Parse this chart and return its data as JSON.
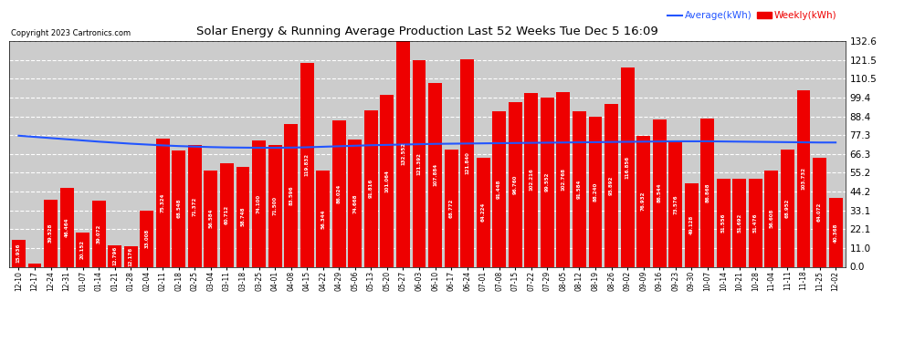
{
  "title": "Solar Energy & Running Average Production Last 52 Weeks Tue Dec 5 16:09",
  "copyright": "Copyright 2023 Cartronics.com",
  "legend_avg": "Average(kWh)",
  "legend_weekly": "Weekly(kWh)",
  "bar_color": "#ee0000",
  "avg_line_color": "#2255ff",
  "background_color": "#ffffff",
  "plot_bg_color": "#cccccc",
  "grid_color": "#ffffff",
  "ylim": [
    0.0,
    132.6
  ],
  "yticks": [
    0.0,
    11.0,
    22.1,
    33.1,
    44.2,
    55.2,
    66.3,
    77.3,
    88.4,
    99.4,
    110.5,
    121.5,
    132.6
  ],
  "categories": [
    "12-10",
    "12-17",
    "12-24",
    "12-31",
    "01-07",
    "01-14",
    "01-21",
    "01-28",
    "02-04",
    "02-11",
    "02-18",
    "02-25",
    "03-04",
    "03-11",
    "03-18",
    "03-25",
    "04-01",
    "04-08",
    "04-15",
    "04-22",
    "04-29",
    "05-06",
    "05-13",
    "05-20",
    "05-27",
    "06-03",
    "06-10",
    "06-17",
    "06-24",
    "07-01",
    "07-08",
    "07-15",
    "07-22",
    "07-29",
    "08-05",
    "08-12",
    "08-19",
    "08-26",
    "09-02",
    "09-09",
    "09-16",
    "09-23",
    "09-30",
    "10-07",
    "10-14",
    "10-21",
    "10-28",
    "11-04",
    "11-11",
    "11-18",
    "11-25",
    "12-02"
  ],
  "weekly_values": [
    15.936,
    1.928,
    39.528,
    46.464,
    20.152,
    39.072,
    12.796,
    12.176,
    33.008,
    75.324,
    68.548,
    71.372,
    56.584,
    60.712,
    58.748,
    74.1,
    71.5,
    83.596,
    119.832,
    56.344,
    86.024,
    74.668,
    91.816,
    101.064,
    132.552,
    121.392,
    107.884,
    68.772,
    121.84,
    64.224,
    91.448,
    96.76,
    102.216,
    99.552,
    102.768,
    91.584,
    88.24,
    95.892,
    116.856,
    76.932,
    86.544,
    73.576,
    49.128,
    86.868,
    51.556,
    51.692,
    51.476,
    56.608,
    68.952,
    103.732,
    64.072,
    40.368
  ],
  "avg_values": [
    77.0,
    76.3,
    75.6,
    74.9,
    74.2,
    73.5,
    72.9,
    72.3,
    71.8,
    71.3,
    70.9,
    70.6,
    70.3,
    70.1,
    70.0,
    69.9,
    69.9,
    70.0,
    70.2,
    70.5,
    70.8,
    71.1,
    71.4,
    71.6,
    71.8,
    72.0,
    72.2,
    72.3,
    72.4,
    72.5,
    72.6,
    72.7,
    72.8,
    72.9,
    73.0,
    73.1,
    73.2,
    73.3,
    73.4,
    73.5,
    73.6,
    73.7,
    73.7,
    73.7,
    73.6,
    73.5,
    73.4,
    73.3,
    73.2,
    73.1,
    73.0,
    73.0
  ]
}
